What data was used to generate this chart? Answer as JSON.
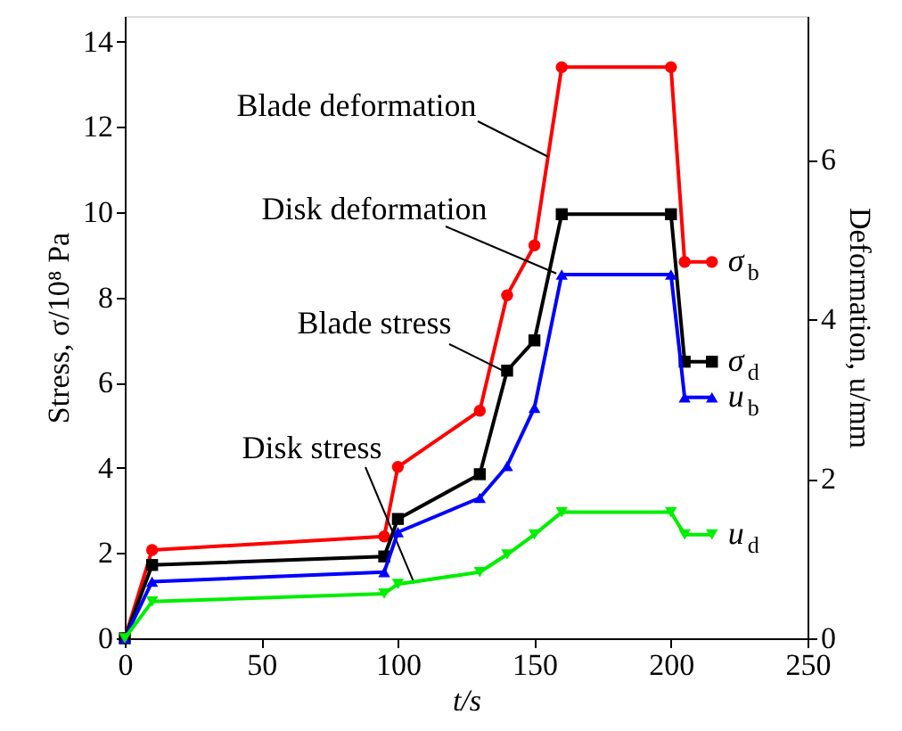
{
  "chart_data": {
    "type": "line",
    "xlabel": "t/s",
    "ylabel": "Stress, σ/10⁸ Pa",
    "y2label": "Deformation, u/mm",
    "x": [
      0,
      10,
      95,
      100,
      130,
      140,
      150,
      160,
      200,
      205,
      215
    ],
    "series": [
      {
        "name": "σ$_{b}$",
        "color": "#ff0000",
        "marker": "circle",
        "values": [
          0,
          2.07,
          2.39,
          4.02,
          5.34,
          8.05,
          9.22,
          13.4,
          13.4,
          8.83,
          8.83
        ]
      },
      {
        "name": "σ$_{d}$",
        "color": "#000000",
        "marker": "square",
        "values": [
          0,
          1.72,
          1.92,
          2.8,
          3.85,
          6.28,
          6.99,
          9.95,
          9.95,
          6.49,
          6.49
        ]
      },
      {
        "name": "u$_{b}$",
        "color": "#0000ff",
        "marker": "triangle",
        "axis": "y2",
        "values": [
          0,
          0.71,
          0.83,
          1.33,
          1.76,
          2.16,
          2.89,
          4.56,
          4.56,
          3.02,
          3.02
        ]
      },
      {
        "name": "u$_{d}$",
        "color": "#00ee00",
        "marker": "triangle-down",
        "axis": "y2",
        "values": [
          0,
          0.46,
          0.56,
          0.68,
          0.83,
          1.05,
          1.3,
          1.58,
          1.58,
          1.3,
          1.3
        ]
      }
    ],
    "annotations": [
      {
        "text": "Blade deformation",
        "x": 155,
        "y": 11.3
      },
      {
        "text": "Disk deformation",
        "x": 158,
        "y": 8.56
      },
      {
        "text": "Blade stress",
        "x": 139,
        "y": 6.26
      },
      {
        "text": "Disk stress",
        "x": 106,
        "y": 1.29
      }
    ],
    "xlim": [
      0,
      250
    ],
    "xticks": [
      0,
      50,
      100,
      150,
      200,
      250
    ],
    "ylim": [
      0,
      14.6
    ],
    "yticks": [
      0,
      2,
      4,
      6,
      8,
      10,
      12,
      14
    ],
    "y2lim": [
      0,
      7.8
    ],
    "y2ticks": [
      0,
      2,
      4,
      6
    ],
    "grid": false
  }
}
